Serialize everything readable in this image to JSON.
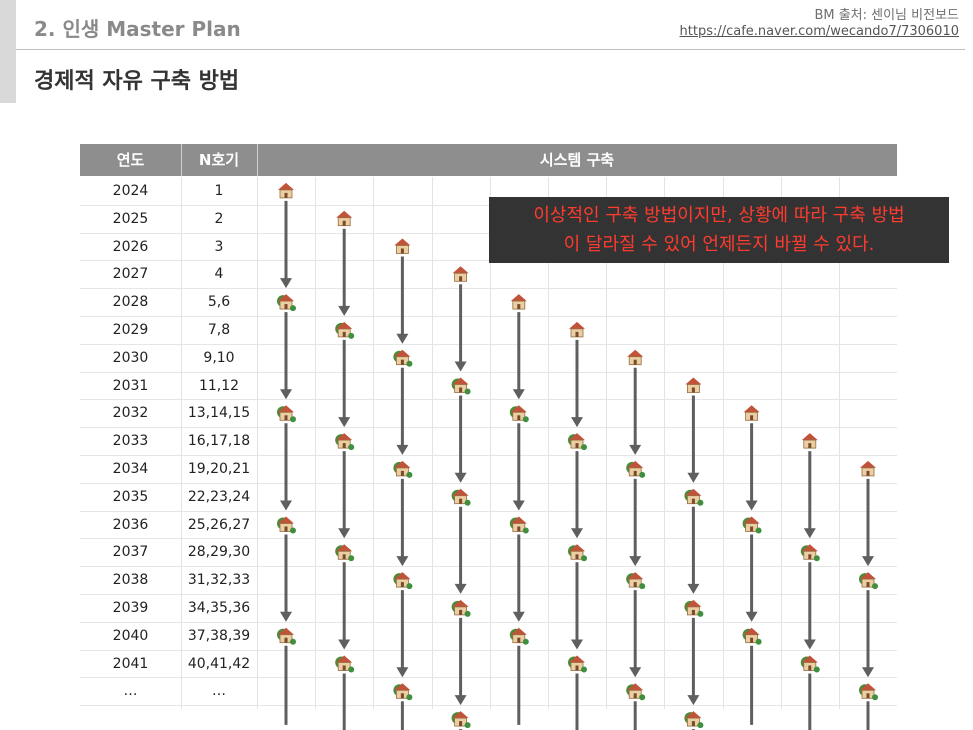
{
  "header": {
    "section": "2. 인생 Master Plan",
    "source_label": "BM 출처: 센이님 비전보드",
    "source_url": "https://cafe.naver.com/wecando7/7306010"
  },
  "page_title": "경제적 자유 구축 방법",
  "table": {
    "columns": [
      "연도",
      "N호기",
      "시스템 구축"
    ],
    "rows": [
      {
        "year": "2024",
        "n": "1"
      },
      {
        "year": "2025",
        "n": "2"
      },
      {
        "year": "2026",
        "n": "3"
      },
      {
        "year": "2027",
        "n": "4"
      },
      {
        "year": "2028",
        "n": "5,6"
      },
      {
        "year": "2029",
        "n": "7,8"
      },
      {
        "year": "2030",
        "n": "9,10"
      },
      {
        "year": "2031",
        "n": "11,12"
      },
      {
        "year": "2032",
        "n": "13,14,15"
      },
      {
        "year": "2033",
        "n": "16,17,18"
      },
      {
        "year": "2034",
        "n": "19,20,21"
      },
      {
        "year": "2035",
        "n": "22,23,24"
      },
      {
        "year": "2036",
        "n": "25,26,27"
      },
      {
        "year": "2037",
        "n": "28,29,30"
      },
      {
        "year": "2038",
        "n": "31,32,33"
      },
      {
        "year": "2039",
        "n": "34,35,36"
      },
      {
        "year": "2040",
        "n": "37,38,39"
      },
      {
        "year": "2041",
        "n": "40,41,42"
      },
      {
        "year": "…",
        "n": "…"
      }
    ]
  },
  "callout": {
    "line1": "이상적인 구축 방법이지만, 상황에 따라 구축 방법",
    "line2": "이 달라질 수 있어 언제든지 바뀔 수 있다."
  },
  "icons": {
    "house": "house-icon",
    "house_tree": "house-with-tree-icon"
  },
  "colors": {
    "header_bg": "#8e8e8e",
    "arrow": "#5f5f5f",
    "callout_bg": "#333333",
    "callout_text": "#ff3b2f"
  }
}
